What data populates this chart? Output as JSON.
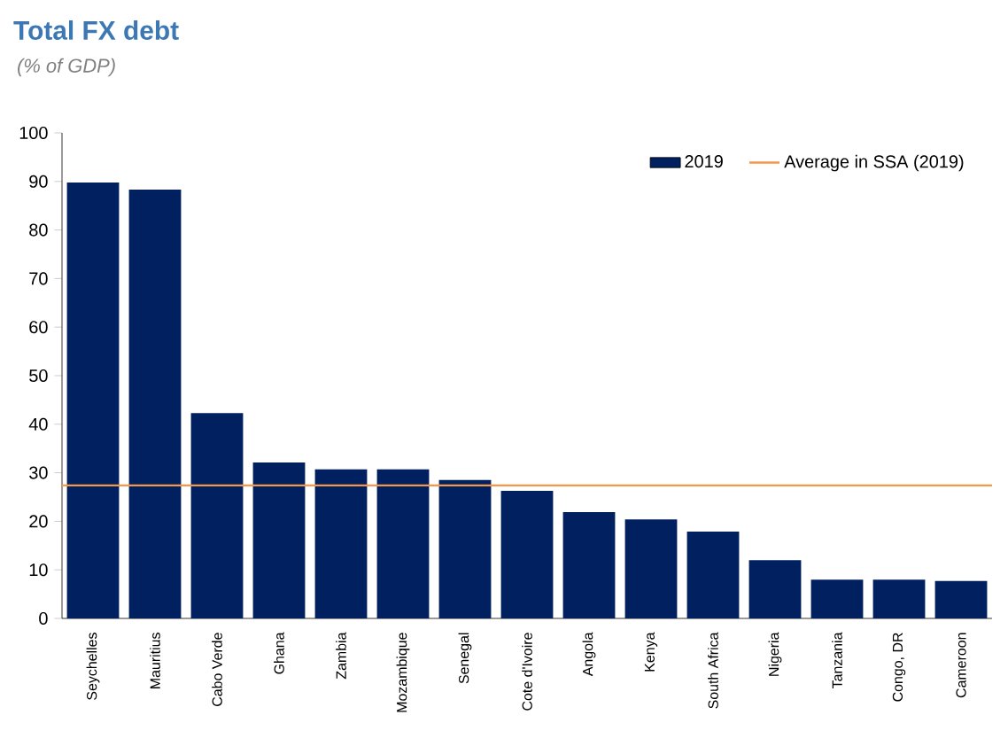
{
  "chart_data": {
    "type": "bar",
    "title": "Total FX debt",
    "subtitle": "(% of GDP)",
    "categories": [
      "Seychelles",
      "Mauritius",
      "Cabo Verde",
      "Ghana",
      "Zambia",
      "Mozambique",
      "Senegal",
      "Cote d'Ivoire",
      "Angola",
      "Kenya",
      "South Africa",
      "Nigeria",
      "Tanzania",
      "Congo, DR",
      "Cameroon"
    ],
    "series": [
      {
        "name": "2019",
        "color": "#002060",
        "values": [
          89.8,
          88.3,
          42.3,
          32.1,
          30.7,
          30.7,
          28.5,
          26.3,
          21.9,
          20.4,
          17.9,
          12.0,
          8.0,
          8.0,
          7.7
        ]
      }
    ],
    "ylim": [
      0,
      100
    ],
    "yticks": [
      0,
      10,
      20,
      30,
      40,
      50,
      60,
      70,
      80,
      90,
      100
    ],
    "ref_lines": [
      {
        "axis": "y",
        "value": 27.4,
        "label": "Average in SSA (2019)",
        "color": "#f79646"
      }
    ],
    "legend": "top right",
    "grid": false
  }
}
